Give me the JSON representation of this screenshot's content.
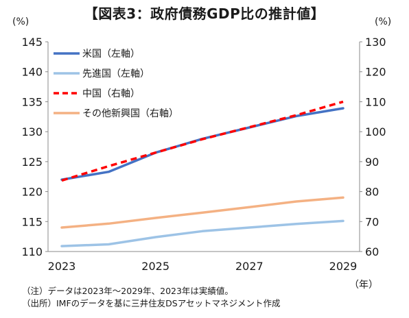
{
  "title": "【図表3：政府債務GDP比の推計値】",
  "notes": [
    "（注）データは2023年～2029年、2023年は実績値。",
    "（出所）IMFのデータを基に三井住友DSアセットマネジメント作成"
  ],
  "chart_data": {
    "type": "line",
    "x": [
      2023,
      2024,
      2025,
      2026,
      2027,
      2028,
      2029
    ],
    "x_ticks": [
      "2023",
      "2025",
      "2027",
      "2029"
    ],
    "x_unit": "（年）",
    "left_unit": "(%)",
    "right_unit": "(%)",
    "left_ylim": [
      110,
      145
    ],
    "right_ylim": [
      60,
      130
    ],
    "left_ticks": [
      "110",
      "115",
      "120",
      "125",
      "130",
      "135",
      "140",
      "145"
    ],
    "right_ticks": [
      "60",
      "70",
      "80",
      "90",
      "100",
      "110",
      "120",
      "130"
    ],
    "grid": false,
    "legend_position": "top-left",
    "series": [
      {
        "name": "米国（左軸）",
        "axis": "left",
        "color": "#4472c4",
        "dash": false,
        "values": [
          122.0,
          123.3,
          126.5,
          128.8,
          130.7,
          132.6,
          133.9
        ]
      },
      {
        "name": "先進国（左軸）",
        "axis": "left",
        "color": "#9dc3e6",
        "dash": false,
        "values": [
          110.9,
          111.2,
          112.4,
          113.4,
          114.0,
          114.6,
          115.1
        ]
      },
      {
        "name": "中国（右軸）",
        "axis": "right",
        "color": "#ff0000",
        "dash": true,
        "values": [
          83.7,
          88.5,
          93.0,
          97.5,
          101.5,
          105.5,
          110.0
        ]
      },
      {
        "name": "その他新興国（右軸）",
        "axis": "right",
        "color": "#f4b183",
        "dash": false,
        "values": [
          68.0,
          69.3,
          71.2,
          73.0,
          74.8,
          76.7,
          78.0
        ]
      }
    ]
  }
}
